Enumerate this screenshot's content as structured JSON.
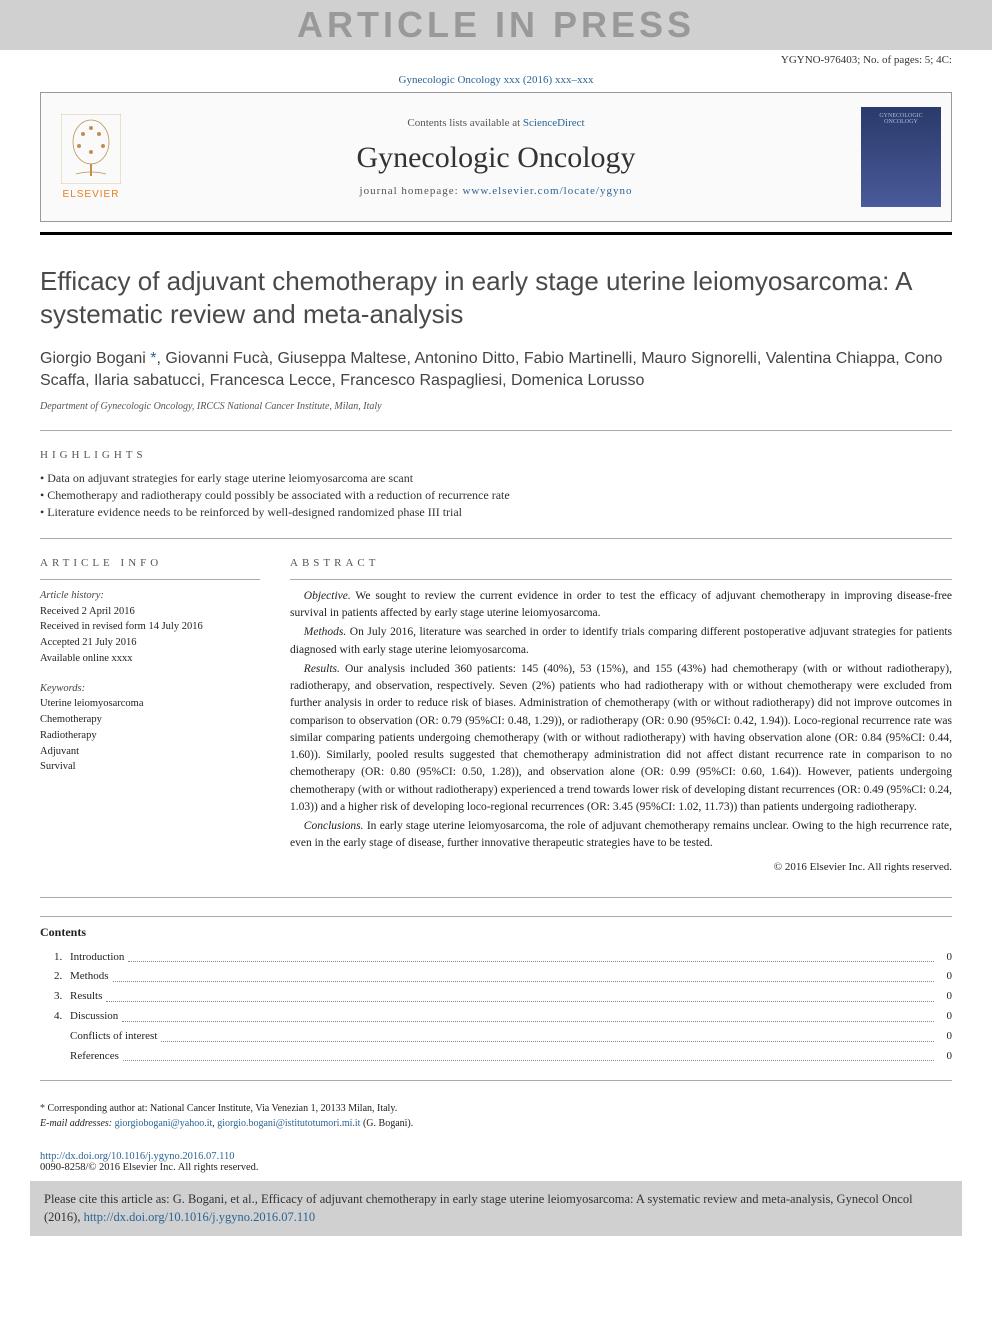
{
  "watermark": "ARTICLE IN PRESS",
  "press_info": "YGYNO-976403; No. of pages: 5; 4C:",
  "journal_ref": "Gynecologic Oncology xxx (2016) xxx–xxx",
  "header": {
    "contents_prefix": "Contents lists available at ",
    "contents_link": "ScienceDirect",
    "journal_title": "Gynecologic Oncology",
    "homepage_prefix": "journal homepage: ",
    "homepage_url": "www.elsevier.com/locate/ygyno",
    "publisher": "ELSEVIER"
  },
  "article": {
    "title": "Efficacy of adjuvant chemotherapy in early stage uterine leiomyosarcoma: A systematic review and meta-analysis",
    "authors_line1": "Giorgio Bogani ",
    "authors_rest": ", Giovanni Fucà, Giuseppa Maltese, Antonino Ditto, Fabio Martinelli, Mauro Signorelli, Valentina Chiappa, Cono Scaffa, Ilaria sabatucci, Francesca Lecce, Francesco Raspagliesi, Domenica Lorusso",
    "affiliation": "Department of Gynecologic Oncology, IRCCS National Cancer Institute, Milan, Italy"
  },
  "highlights_label": "HIGHLIGHTS",
  "highlights": [
    "Data on adjuvant strategies for early stage uterine leiomyosarcoma are scant",
    "Chemotherapy and radiotherapy could possibly be associated with a reduction of recurrence rate",
    "Literature evidence needs to be reinforced by well-designed randomized phase III trial"
  ],
  "article_info_label": "ARTICLE INFO",
  "article_info": {
    "history_head": "Article history:",
    "received": "Received 2 April 2016",
    "revised": "Received in revised form 14 July 2016",
    "accepted": "Accepted 21 July 2016",
    "online": "Available online xxxx",
    "keywords_head": "Keywords:",
    "keywords": [
      "Uterine leiomyosarcoma",
      "Chemotherapy",
      "Radiotherapy",
      "Adjuvant",
      "Survival"
    ]
  },
  "abstract_label": "ABSTRACT",
  "abstract": {
    "objective_head": "Objective.",
    "objective": " We sought to review the current evidence in order to test the efficacy of adjuvant chemotherapy in improving disease-free survival in patients affected by early stage uterine leiomyosarcoma.",
    "methods_head": "Methods.",
    "methods": " On July 2016, literature was searched in order to identify trials comparing different postoperative adjuvant strategies for patients diagnosed with early stage uterine leiomyosarcoma.",
    "results_head": "Results.",
    "results": " Our analysis included 360 patients: 145 (40%), 53 (15%), and 155 (43%) had chemotherapy (with or without radiotherapy), radiotherapy, and observation, respectively. Seven (2%) patients who had radiotherapy with or without chemotherapy were excluded from further analysis in order to reduce risk of biases. Administration of chemotherapy (with or without radiotherapy) did not improve outcomes in comparison to observation (OR: 0.79 (95%CI: 0.48, 1.29)), or radiotherapy (OR: 0.90 (95%CI: 0.42, 1.94)). Loco-regional recurrence rate was similar comparing patients undergoing chemotherapy (with or without radiotherapy) with having observation alone (OR: 0.84 (95%CI: 0.44, 1.60)). Similarly, pooled results suggested that chemotherapy administration did not affect distant recurrence rate in comparison to no chemotherapy (OR: 0.80 (95%CI: 0.50, 1.28)), and observation alone (OR: 0.99 (95%CI: 0.60, 1.64)). However, patients undergoing chemotherapy (with or without radiotherapy) experienced a trend towards lower risk of developing distant recurrences (OR: 0.49 (95%CI: 0.24, 1.03)) and a higher risk of developing loco-regional recurrences (OR: 3.45 (95%CI: 1.02, 11.73)) than patients undergoing radiotherapy.",
    "conclusions_head": "Conclusions.",
    "conclusions": " In early stage uterine leiomyosarcoma, the role of adjuvant chemotherapy remains unclear. Owing to the high recurrence rate, even in the early stage of disease, further innovative therapeutic strategies have to be tested.",
    "copyright": "© 2016 Elsevier Inc. All rights reserved."
  },
  "contents_head": "Contents",
  "toc": [
    {
      "num": "1.",
      "label": "Introduction",
      "page": "0"
    },
    {
      "num": "2.",
      "label": "Methods",
      "page": "0"
    },
    {
      "num": "3.",
      "label": "Results",
      "page": "0"
    },
    {
      "num": "4.",
      "label": "Discussion",
      "page": "0"
    },
    {
      "num": "",
      "label": "Conflicts of interest",
      "page": "0"
    },
    {
      "num": "",
      "label": "References",
      "page": "0"
    }
  ],
  "footnotes": {
    "corr_star": "*",
    "corr_text": " Corresponding author at: National Cancer Institute, Via Venezian 1, 20133 Milan, Italy.",
    "email_label": "E-mail addresses: ",
    "email1": "giorgiobogani@yahoo.it",
    "email2": "giorgio.bogani@istitutotumori.mi.it",
    "email_suffix": " (G. Bogani)."
  },
  "doi": {
    "url": "http://dx.doi.org/10.1016/j.ygyno.2016.07.110",
    "issn_line": "0090-8258/© 2016 Elsevier Inc. All rights reserved."
  },
  "citation": {
    "prefix": "Please cite this article as: G. Bogani, et al., Efficacy of adjuvant chemotherapy in early stage uterine leiomyosarcoma: A systematic review and meta-analysis, Gynecol Oncol (2016), ",
    "link": "http://dx.doi.org/10.1016/j.ygyno.2016.07.110"
  },
  "colors": {
    "link": "#2a6496",
    "watermark_bg": "#d0d0d0",
    "rule": "#000000"
  }
}
